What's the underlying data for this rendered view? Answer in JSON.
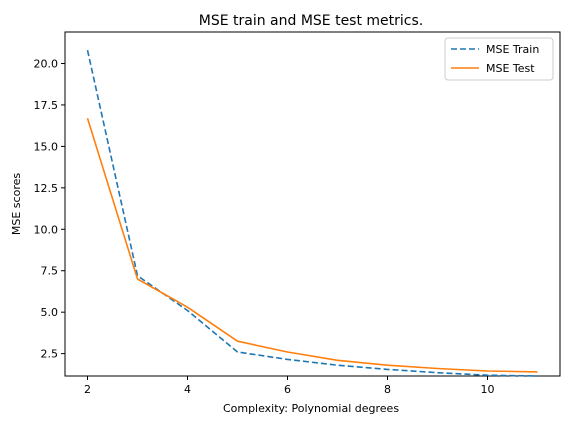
{
  "chart_data": {
    "type": "line",
    "title": "MSE train and MSE test metrics.",
    "xlabel": "Complexity: Polynomial degrees",
    "ylabel": "MSE scores",
    "xlim": [
      1.55,
      11.45
    ],
    "ylim": [
      1.15,
      21.9
    ],
    "x_ticks": [
      2,
      4,
      6,
      8,
      10
    ],
    "x_tick_labels": [
      "2",
      "4",
      "6",
      "8",
      "10"
    ],
    "y_ticks": [
      2.5,
      5.0,
      7.5,
      10.0,
      12.5,
      15.0,
      17.5,
      20.0
    ],
    "y_tick_labels": [
      "2.5",
      "5.0",
      "7.5",
      "10.0",
      "12.5",
      "15.0",
      "17.5",
      "20.0"
    ],
    "grid": false,
    "legend_position": "top-right",
    "x": [
      2,
      3,
      4,
      5,
      6,
      7,
      8,
      9,
      10,
      11
    ],
    "series": [
      {
        "name": "MSE Train",
        "color": "#1f77b4",
        "style": "dashed",
        "values": [
          20.8,
          7.2,
          5.1,
          2.6,
          2.15,
          1.8,
          1.55,
          1.35,
          1.2,
          1.15
        ]
      },
      {
        "name": "MSE Test",
        "color": "#ff7f0e",
        "style": "solid",
        "values": [
          16.7,
          7.0,
          5.3,
          3.25,
          2.6,
          2.1,
          1.8,
          1.6,
          1.45,
          1.4
        ]
      }
    ]
  }
}
